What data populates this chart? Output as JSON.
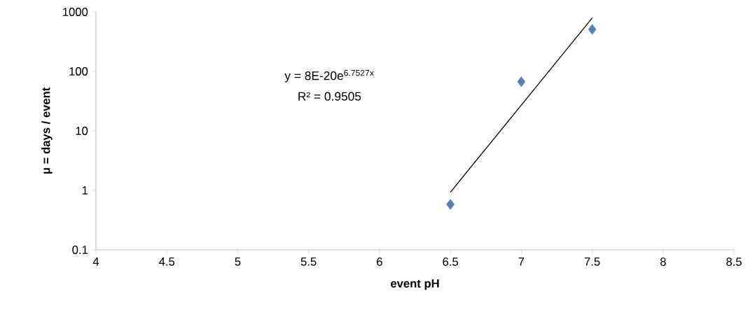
{
  "chart_data": {
    "type": "scatter",
    "xlabel": "event pH",
    "ylabel": "μ = days / event",
    "x": [
      6.5,
      7,
      7.5
    ],
    "series": [
      {
        "color": "#4f81bd",
        "marker": "diamond",
        "values": [
          0.58,
          67,
          508
        ]
      },
      {
        "type": "line",
        "color": "#000000",
        "marker": "none",
        "x": [
          6.5,
          7.5
        ],
        "values": [
          0.93,
          790
        ]
      }
    ],
    "annotations": [
      "y = 8E-20e$^{6.7527x}$",
      "R² = 0.9505"
    ],
    "log": "y",
    "grid": false,
    "xlim": [
      4,
      8.5
    ],
    "ylim": [
      0.1,
      1000
    ],
    "xticks": [
      4,
      4.5,
      5,
      5.5,
      6,
      6.5,
      7,
      7.5,
      8,
      8.5
    ],
    "yticks": [
      0.1,
      1,
      10,
      100,
      1000
    ]
  }
}
